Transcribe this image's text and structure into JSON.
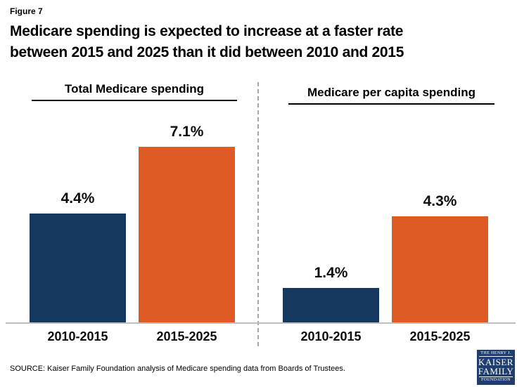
{
  "figure_label": "Figure 7",
  "title_lines": [
    "Medicare spending is expected to increase at a faster rate",
    "between 2015 and 2025 than it did between 2010 and 2015"
  ],
  "source": "SOURCE: Kaiser Family Foundation analysis of Medicare spending data from Boards of Trustees.",
  "logo": {
    "line1": "THE HENRY J.",
    "line2": "KAISER",
    "line3": "FAMILY",
    "line4": "FOUNDATION",
    "color": "#1f3e6e"
  },
  "chart_data": {
    "type": "bar",
    "unit": "%",
    "series_colors": [
      "#17385e",
      "#de5b26"
    ],
    "axis_line_color": "#bfbfbf",
    "panel_divider": "vertical dashed line",
    "legend": "none",
    "grid": false,
    "ylim": [
      0,
      8
    ],
    "panels": [
      {
        "title": "Total Medicare spending",
        "categories": [
          "2010-2015",
          "2015-2025"
        ],
        "values": [
          4.4,
          7.1
        ],
        "labels": [
          "4.4%",
          "7.1%"
        ]
      },
      {
        "title": "Medicare per capita spending",
        "categories": [
          "2010-2015",
          "2015-2025"
        ],
        "values": [
          1.4,
          4.3
        ],
        "labels": [
          "1.4%",
          "4.3%"
        ]
      }
    ]
  }
}
